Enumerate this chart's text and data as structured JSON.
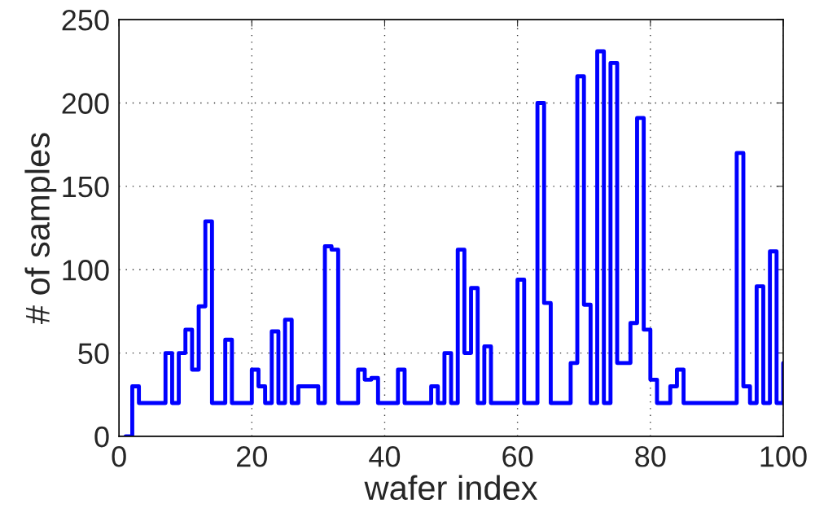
{
  "chart_data": {
    "type": "step",
    "xlabel": "wafer index",
    "ylabel": "# of samples",
    "x": [
      1,
      2,
      3,
      4,
      5,
      6,
      7,
      8,
      9,
      10,
      11,
      12,
      13,
      14,
      15,
      16,
      17,
      18,
      19,
      20,
      21,
      22,
      23,
      24,
      25,
      26,
      27,
      28,
      29,
      30,
      31,
      32,
      33,
      34,
      35,
      36,
      37,
      38,
      39,
      40,
      41,
      42,
      43,
      44,
      45,
      46,
      47,
      48,
      49,
      50,
      51,
      52,
      53,
      54,
      55,
      56,
      57,
      58,
      59,
      60,
      61,
      62,
      63,
      64,
      65,
      66,
      67,
      68,
      69,
      70,
      71,
      72,
      73,
      74,
      75,
      76,
      77,
      78,
      79,
      80,
      81,
      82,
      83,
      84,
      85,
      86,
      87,
      88,
      89,
      90,
      91,
      92,
      93,
      94,
      95,
      96,
      97,
      98,
      99,
      100
    ],
    "series": [
      {
        "color": "#0000ff",
        "values": [
          0,
          30,
          20,
          20,
          20,
          20,
          50,
          20,
          50,
          64,
          40,
          78,
          129,
          20,
          20,
          58,
          20,
          20,
          20,
          40,
          30,
          20,
          63,
          20,
          70,
          20,
          30,
          30,
          30,
          20,
          114,
          112,
          20,
          20,
          20,
          40,
          34,
          35,
          20,
          20,
          20,
          40,
          20,
          20,
          20,
          20,
          30,
          20,
          50,
          20,
          112,
          50,
          89,
          20,
          54,
          20,
          20,
          20,
          20,
          94,
          20,
          20,
          200,
          80,
          20,
          20,
          20,
          44,
          216,
          79,
          20,
          231,
          20,
          224,
          44,
          44,
          68,
          191,
          64,
          34,
          20,
          20,
          30,
          40,
          20,
          20,
          20,
          20,
          20,
          20,
          20,
          20,
          170,
          30,
          20,
          90,
          20,
          111,
          20,
          44
        ]
      }
    ],
    "xlim": [
      0,
      100
    ],
    "ylim": [
      0,
      250
    ],
    "xticks": [
      0,
      20,
      40,
      60,
      80,
      100
    ],
    "yticks": [
      0,
      50,
      100,
      150,
      200,
      250
    ],
    "grid": true,
    "line_style": "solid",
    "marker": "none"
  }
}
